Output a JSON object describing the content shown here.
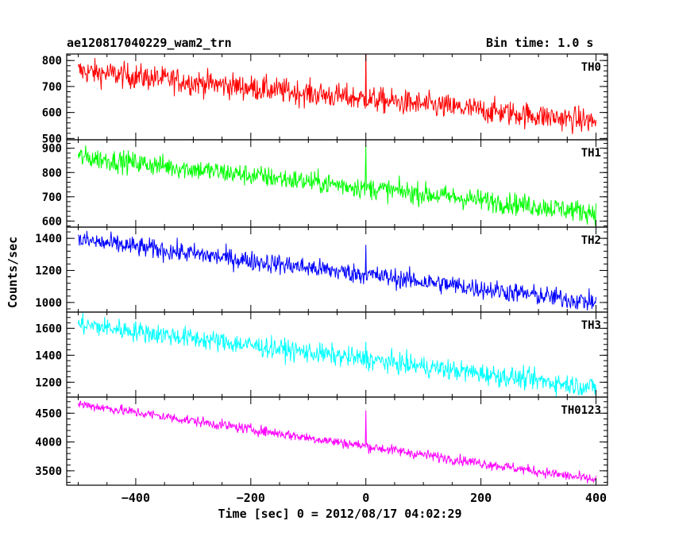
{
  "title": "ae120817040229_wam2_trn",
  "bin_time": "Bin time: 1.0 s",
  "chart_data": {
    "type": "line",
    "title": "ae120817040229_wam2_trn",
    "xlabel": "Time [sec] 0 = 2012/08/17 04:02:29",
    "ylabel": "Counts/sec",
    "xlim": [
      -520,
      420
    ],
    "x_ticks": [
      -400,
      -200,
      0,
      200,
      400
    ],
    "x_data_range": [
      -500,
      400
    ],
    "burst_time": 0,
    "panels": [
      {
        "name": "TH0",
        "color": "#ff0000",
        "ylim": [
          495,
          825
        ],
        "y_ticks": [
          500,
          600,
          700,
          800
        ],
        "start": 760,
        "end": 565,
        "noise": 35,
        "spike": 850
      },
      {
        "name": "TH1",
        "color": "#00ff00",
        "ylim": [
          575,
          935
        ],
        "y_ticks": [
          600,
          700,
          800,
          900
        ],
        "start": 865,
        "end": 635,
        "noise": 32,
        "spike": 910
      },
      {
        "name": "TH2",
        "color": "#0000ff",
        "ylim": [
          940,
          1470
        ],
        "y_ticks": [
          1000,
          1200,
          1400
        ],
        "start": 1390,
        "end": 1000,
        "noise": 45,
        "spike": 1360
      },
      {
        "name": "TH3",
        "color": "#00ffff",
        "ylim": [
          1090,
          1720
        ],
        "y_ticks": [
          1200,
          1400,
          1600
        ],
        "start": 1630,
        "end": 1160,
        "noise": 55,
        "spike": 1500
      },
      {
        "name": "TH0123",
        "color": "#ff00ff",
        "ylim": [
          3250,
          4780
        ],
        "y_ticks": [
          3500,
          4000,
          4500
        ],
        "start": 4660,
        "end": 3340,
        "noise": 65,
        "spike": 4550
      }
    ]
  }
}
